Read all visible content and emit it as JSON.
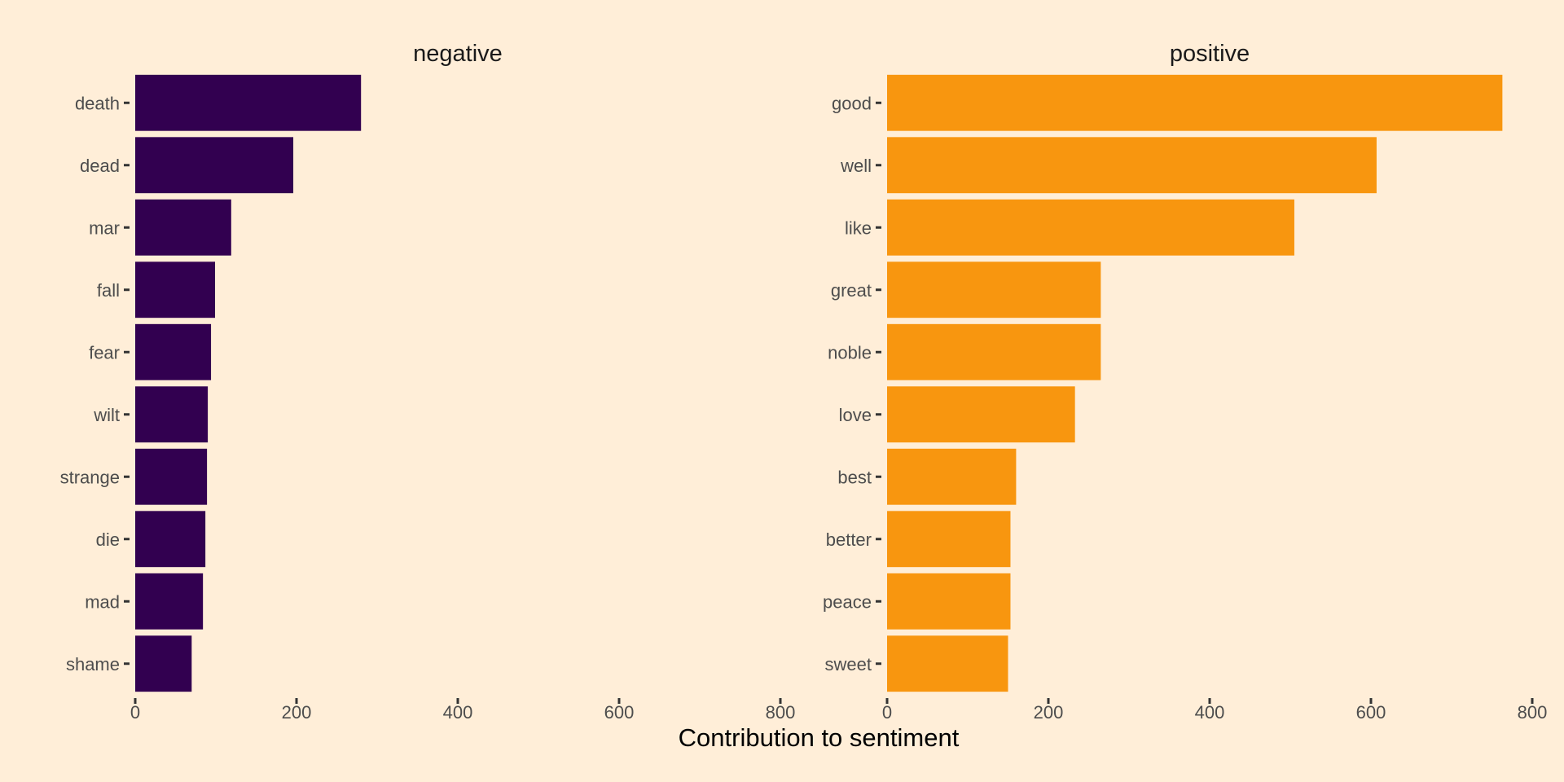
{
  "chart_data": {
    "type": "bar",
    "orientation": "horizontal",
    "xlabel": "Contribution to sentiment",
    "xlim": [
      0,
      800
    ],
    "xticks": [
      0,
      200,
      400,
      600,
      800
    ],
    "background": "#ffeed8",
    "grid": false,
    "panels": [
      {
        "title": "negative",
        "color": "#320050",
        "categories": [
          "death",
          "dead",
          "mar",
          "fall",
          "fear",
          "wilt",
          "strange",
          "die",
          "mad",
          "shame"
        ],
        "values": [
          280,
          196,
          119,
          99,
          94,
          90,
          89,
          87,
          84,
          70
        ]
      },
      {
        "title": "positive",
        "color": "#f8960f",
        "categories": [
          "good",
          "well",
          "like",
          "great",
          "noble",
          "love",
          "best",
          "better",
          "peace",
          "sweet"
        ],
        "values": [
          763,
          607,
          505,
          265,
          265,
          233,
          160,
          153,
          153,
          150
        ]
      }
    ]
  }
}
